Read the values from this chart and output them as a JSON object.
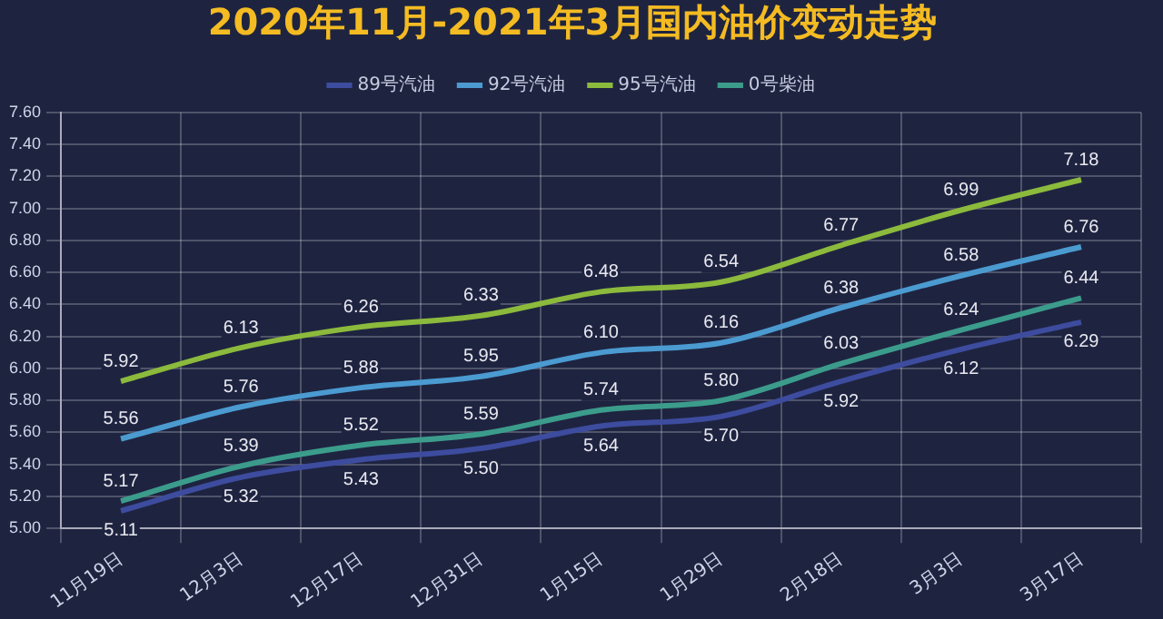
{
  "chart_data": {
    "type": "line",
    "title": "2020年11月-2021年3月国内油价变动走势",
    "categories": [
      "11月19日",
      "12月3日",
      "12月17日",
      "12月31日",
      "1月15日",
      "1月29日",
      "2月18日",
      "3月3日",
      "3月17日"
    ],
    "series": [
      {
        "name": "89号汽油",
        "color": "#3d4c9e",
        "values": [
          5.11,
          5.32,
          5.43,
          5.5,
          5.64,
          5.7,
          5.92,
          6.12,
          6.29
        ],
        "value_labels": [
          "5.11",
          "5.32",
          "5.43",
          "5.50",
          "5.64",
          "5.70",
          "5.92",
          "6.12",
          "6.29"
        ]
      },
      {
        "name": "92号汽油",
        "color": "#4b9bd1",
        "values": [
          5.56,
          5.76,
          5.88,
          5.95,
          6.1,
          6.16,
          6.38,
          6.58,
          6.76
        ],
        "value_labels": [
          "5.56",
          "5.76",
          "5.88",
          "5.95",
          "6.10",
          "6.16",
          "6.38",
          "6.58",
          "6.76"
        ]
      },
      {
        "name": "95号汽油",
        "color": "#8cba3c",
        "values": [
          5.92,
          6.13,
          6.26,
          6.33,
          6.48,
          6.54,
          6.77,
          6.99,
          7.18
        ],
        "value_labels": [
          "5.92",
          "6.13",
          "6.26",
          "6.33",
          "6.48",
          "6.54",
          "6.77",
          "6.99",
          "7.18"
        ]
      },
      {
        "name": "0号柴油",
        "color": "#3c9c8c",
        "values": [
          5.17,
          5.39,
          5.52,
          5.59,
          5.74,
          5.8,
          6.03,
          6.24,
          6.44
        ],
        "value_labels": [
          "5.17",
          "5.39",
          "5.52",
          "5.59",
          "5.74",
          "5.80",
          "6.03",
          "6.24",
          "6.44"
        ]
      }
    ],
    "ylim": [
      5.0,
      7.6
    ],
    "yticks": [
      "5.00",
      "5.20",
      "5.40",
      "5.60",
      "5.80",
      "6.00",
      "6.20",
      "6.40",
      "6.60",
      "6.80",
      "7.00",
      "7.20",
      "7.40",
      "7.60"
    ],
    "grid": true,
    "legend": "top",
    "marker": "none",
    "line_style": "solid"
  }
}
